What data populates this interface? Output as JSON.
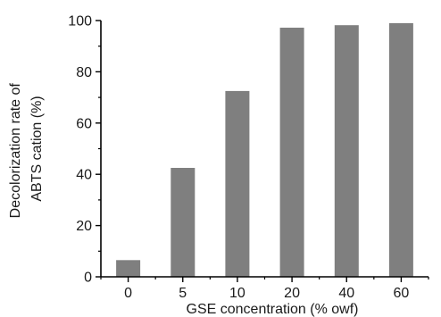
{
  "chart_data": {
    "type": "bar",
    "categories": [
      "0",
      "5",
      "10",
      "20",
      "40",
      "60"
    ],
    "values": [
      6.5,
      42.5,
      72.5,
      97.2,
      98.2,
      99.0
    ],
    "xlabel": "GSE concentration (% owf)",
    "ylabel_lines": [
      "Decolorization rate of",
      "ABTS cation (%)"
    ],
    "ylim": [
      0,
      100
    ],
    "yticks": [
      0,
      20,
      40,
      60,
      80,
      100
    ],
    "ytick_labels": [
      "0",
      "20",
      "40",
      "60",
      "80",
      "100"
    ],
    "grid": false,
    "legend": "none",
    "bar_color": "#7f7f7f"
  }
}
